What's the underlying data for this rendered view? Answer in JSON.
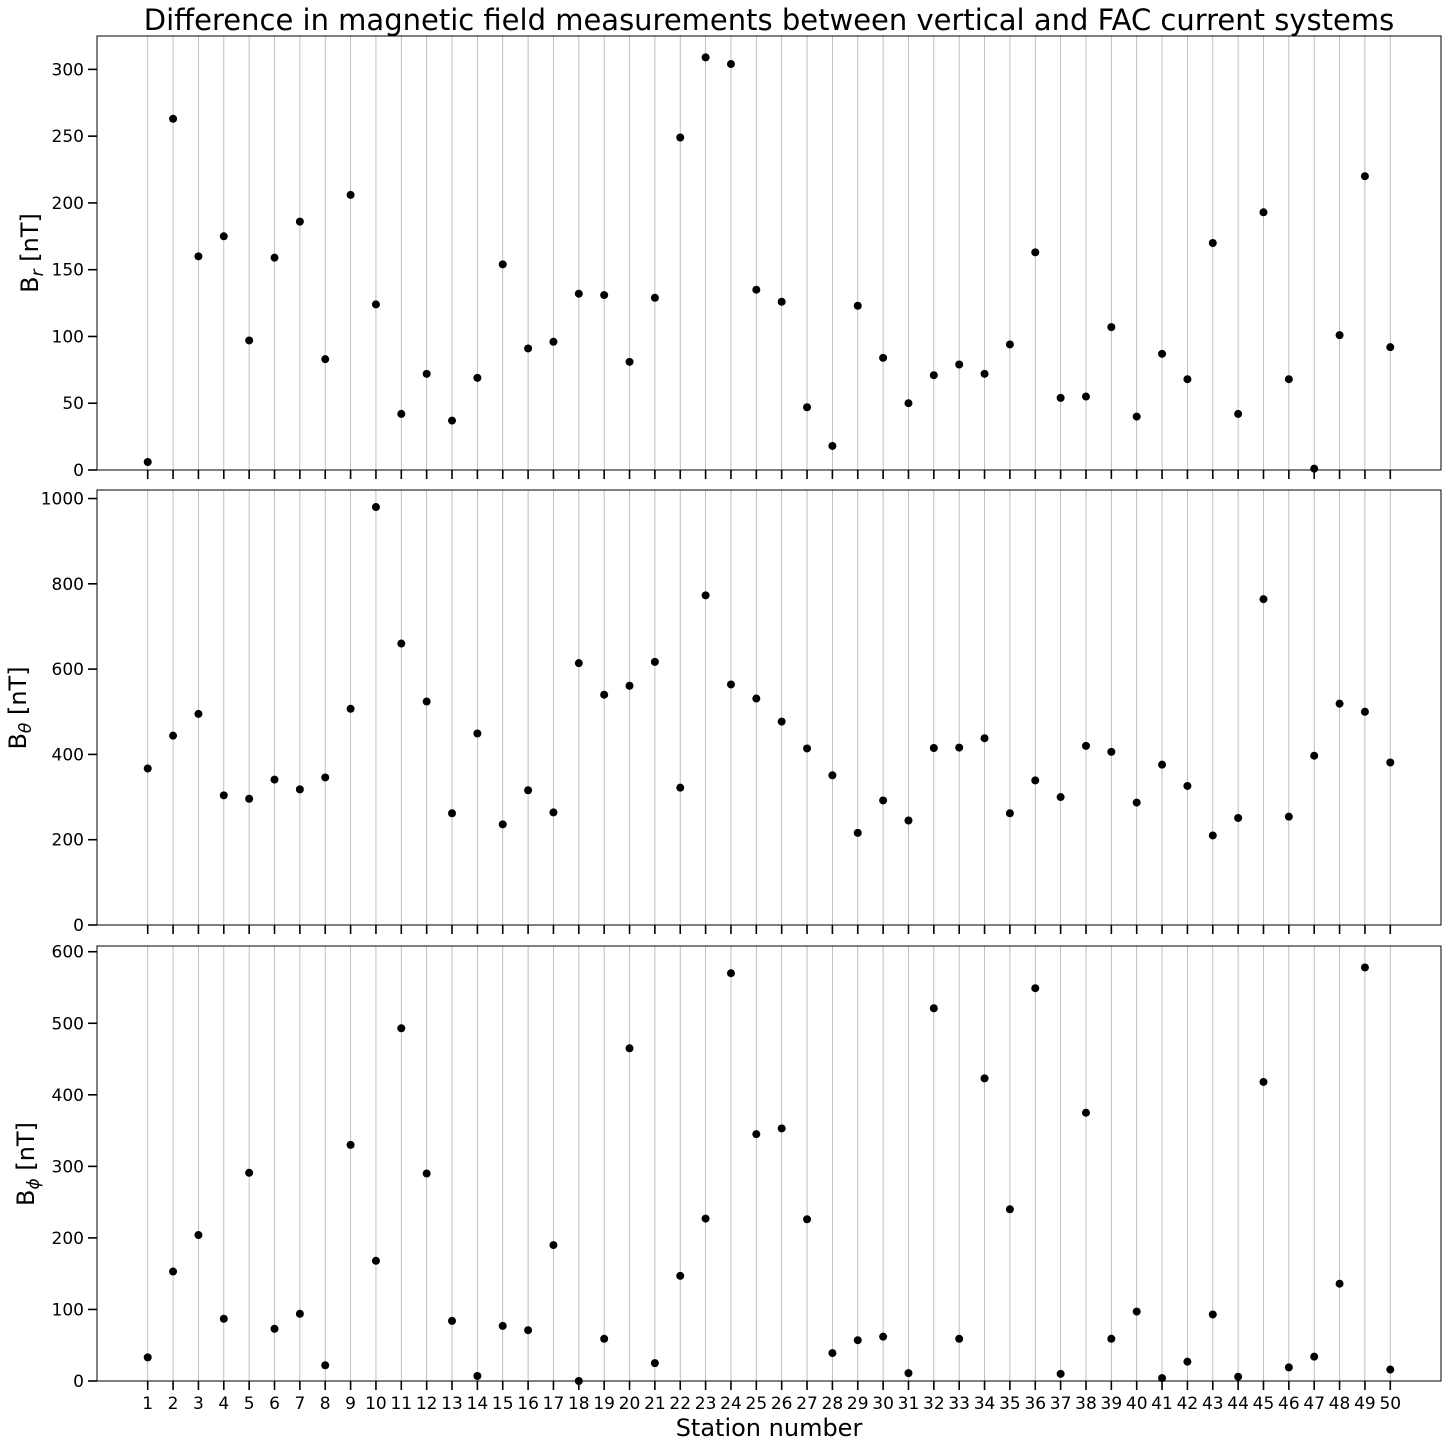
{
  "chart_data": {
    "type": "scatter",
    "title": "Difference in magnetic field measurements between vertical and FAC current systems",
    "xlabel": "Station number",
    "grid": "vertical",
    "x": [
      1,
      2,
      3,
      4,
      5,
      6,
      7,
      8,
      9,
      10,
      11,
      12,
      13,
      14,
      15,
      16,
      17,
      18,
      19,
      20,
      21,
      22,
      23,
      24,
      25,
      26,
      27,
      28,
      29,
      30,
      31,
      32,
      33,
      34,
      35,
      36,
      37,
      38,
      39,
      40,
      41,
      42,
      43,
      44,
      45,
      46,
      47,
      48,
      49,
      50
    ],
    "xlim": [
      -1,
      52
    ],
    "panels": [
      {
        "ylabel_base": "B",
        "ylabel_sub": "r",
        "ylabel_unit": " [nT]",
        "ylim": [
          0,
          325
        ],
        "yticks": [
          0,
          50,
          100,
          150,
          200,
          250,
          300
        ],
        "values": [
          6,
          263,
          160,
          175,
          97,
          159,
          186,
          83,
          206,
          124,
          42,
          72,
          37,
          69,
          154,
          91,
          96,
          132,
          131,
          81,
          129,
          249,
          309,
          304,
          135,
          126,
          47,
          18,
          123,
          84,
          50,
          71,
          79,
          72,
          94,
          163,
          54,
          55,
          107,
          40,
          87,
          68,
          170,
          42,
          193,
          68,
          1,
          101,
          220,
          92
        ]
      },
      {
        "ylabel_base": "B",
        "ylabel_sub": "θ",
        "ylabel_unit": " [nT]",
        "ylim": [
          0,
          1020
        ],
        "yticks": [
          0,
          200,
          400,
          600,
          800,
          1000
        ],
        "values": [
          367,
          444,
          495,
          304,
          296,
          341,
          318,
          346,
          507,
          980,
          660,
          524,
          262,
          449,
          236,
          316,
          264,
          614,
          540,
          561,
          617,
          322,
          773,
          564,
          531,
          477,
          414,
          351,
          216,
          292,
          245,
          415,
          416,
          438,
          262,
          339,
          300,
          420,
          406,
          287,
          376,
          326,
          210,
          251,
          764,
          254,
          397,
          519,
          500,
          381
        ]
      },
      {
        "ylabel_base": "B",
        "ylabel_sub": "ϕ",
        "ylabel_unit": " [nT]",
        "ylim": [
          0,
          608
        ],
        "yticks": [
          0,
          100,
          200,
          300,
          400,
          500,
          600
        ],
        "values": [
          33,
          153,
          204,
          87,
          291,
          73,
          94,
          22,
          330,
          168,
          493,
          290,
          84,
          7,
          77,
          71,
          190,
          0,
          59,
          465,
          25,
          147,
          227,
          570,
          345,
          353,
          226,
          39,
          57,
          62,
          11,
          521,
          59,
          423,
          240,
          549,
          10,
          375,
          59,
          97,
          4,
          27,
          93,
          6,
          418,
          19,
          34,
          136,
          578,
          16
        ]
      }
    ]
  }
}
